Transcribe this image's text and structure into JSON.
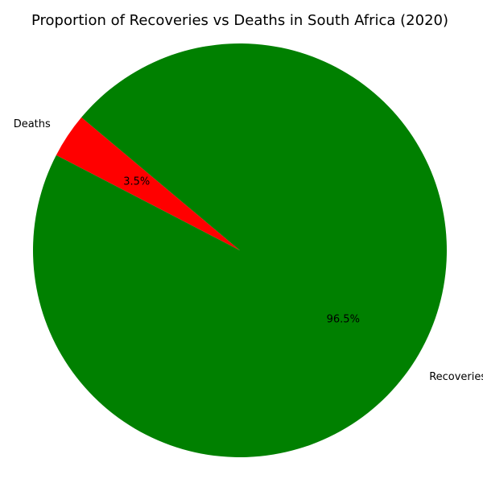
{
  "chart_data": {
    "type": "pie",
    "title": "Proportion of Recoveries vs Deaths in South Africa (2020)",
    "slices": [
      {
        "label": "Deaths",
        "value": 3.5,
        "display": "3.5%",
        "color": "#ff0000"
      },
      {
        "label": "Recoveries",
        "value": 96.5,
        "display": "96.5%",
        "color": "#008000"
      }
    ],
    "start_angle_deg": 140,
    "direction": "counterclockwise"
  }
}
